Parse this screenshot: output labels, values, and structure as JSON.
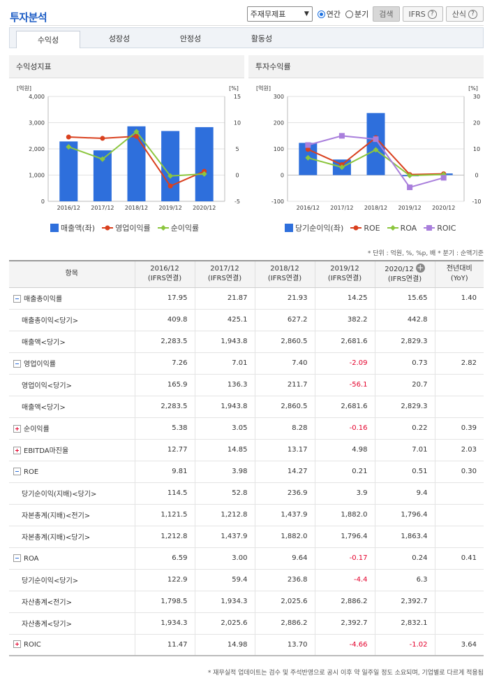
{
  "title": "투자분석",
  "controls": {
    "select_value": "주재무제표",
    "radio_annual": "연간",
    "radio_quarter": "분기",
    "search_btn": "검색",
    "ifrs_btn": "IFRS",
    "formula_btn": "산식"
  },
  "tabs": [
    {
      "label": "수익성"
    },
    {
      "label": "성장성"
    },
    {
      "label": "안정성"
    },
    {
      "label": "활동성"
    }
  ],
  "left_panel": {
    "title": "수익성지표"
  },
  "right_panel": {
    "title": "투자수익률"
  },
  "chart_data": [
    {
      "type": "bar",
      "title": "수익성지표",
      "categories": [
        "2016/12",
        "2017/12",
        "2018/12",
        "2019/12",
        "2020/12"
      ],
      "y_left_unit": "[억원]",
      "y_right_unit": "[%]",
      "y_left_ticks": [
        "4,000",
        "3,000",
        "2,000",
        "1,000",
        "0"
      ],
      "y_right_ticks": [
        "15",
        "10",
        "5",
        "0",
        "-5"
      ],
      "ylim_left": [
        0,
        4000
      ],
      "ylim_right": [
        -5,
        15
      ],
      "series": [
        {
          "name": "매출액(좌)",
          "kind": "bar",
          "axis": "left",
          "color": "#2e6fdc",
          "values": [
            2283.5,
            1943.8,
            2860.5,
            2681.6,
            2829.3
          ]
        },
        {
          "name": "영업이익률",
          "kind": "line",
          "axis": "right",
          "color": "#d9401e",
          "values": [
            7.26,
            7.01,
            7.4,
            -2.09,
            0.73
          ]
        },
        {
          "name": "순이익률",
          "kind": "line",
          "axis": "right",
          "color": "#8cc63e",
          "values": [
            5.38,
            3.05,
            8.28,
            -0.16,
            0.22
          ]
        }
      ]
    },
    {
      "type": "bar",
      "title": "투자수익률",
      "categories": [
        "2016/12",
        "2017/12",
        "2018/12",
        "2019/12",
        "2020/12"
      ],
      "y_left_unit": "[억원]",
      "y_right_unit": "[%]",
      "y_left_ticks": [
        "300",
        "200",
        "100",
        "0",
        "-100"
      ],
      "y_right_ticks": [
        "30",
        "20",
        "10",
        "0",
        "-10"
      ],
      "ylim_left": [
        -100,
        300
      ],
      "ylim_right": [
        -10,
        30
      ],
      "series": [
        {
          "name": "당기순이익(좌)",
          "kind": "bar",
          "axis": "left",
          "color": "#2e6fdc",
          "values": [
            122.9,
            59.4,
            236.8,
            -4.4,
            6.3
          ]
        },
        {
          "name": "ROE",
          "kind": "line",
          "axis": "right",
          "color": "#d9401e",
          "values": [
            9.81,
            3.98,
            14.27,
            0.21,
            0.51
          ]
        },
        {
          "name": "ROA",
          "kind": "line",
          "axis": "right",
          "color": "#8cc63e",
          "values": [
            6.59,
            3.0,
            9.64,
            -0.17,
            0.24
          ]
        },
        {
          "name": "ROIC",
          "kind": "line",
          "axis": "right",
          "color": "#a97fdc",
          "values": [
            11.47,
            14.98,
            13.7,
            -4.66,
            -1.02
          ]
        }
      ]
    }
  ],
  "unit_note": "* 단위 : 억원, %, %p, 배   * 분기 : 순액기준",
  "table": {
    "headers": [
      {
        "l1": "항목",
        "l2": ""
      },
      {
        "l1": "2016/12",
        "l2": "(IFRS연결)"
      },
      {
        "l1": "2017/12",
        "l2": "(IFRS연결)"
      },
      {
        "l1": "2018/12",
        "l2": "(IFRS연결)"
      },
      {
        "l1": "2019/12",
        "l2": "(IFRS연결)"
      },
      {
        "l1": "2020/12",
        "l2": "(IFRS연결)"
      },
      {
        "l1": "전년대비",
        "l2": "(YoY)"
      }
    ],
    "rows": [
      {
        "label": "매출총이익률",
        "kind": "main",
        "toggle": "minus",
        "values": [
          "17.95",
          "21.87",
          "21.93",
          "14.25",
          "15.65",
          "1.40"
        ]
      },
      {
        "label": "매출총이익<당기>",
        "kind": "sub",
        "values": [
          "409.8",
          "425.1",
          "627.2",
          "382.2",
          "442.8",
          ""
        ]
      },
      {
        "label": "매출액<당기>",
        "kind": "sub",
        "values": [
          "2,283.5",
          "1,943.8",
          "2,860.5",
          "2,681.6",
          "2,829.3",
          ""
        ]
      },
      {
        "label": "영업이익률",
        "kind": "main",
        "toggle": "minus",
        "values": [
          "7.26",
          "7.01",
          "7.40",
          "-2.09",
          "0.73",
          "2.82"
        ]
      },
      {
        "label": "영업이익<당기>",
        "kind": "sub",
        "values": [
          "165.9",
          "136.3",
          "211.7",
          "-56.1",
          "20.7",
          ""
        ]
      },
      {
        "label": "매출액<당기>",
        "kind": "sub",
        "values": [
          "2,283.5",
          "1,943.8",
          "2,860.5",
          "2,681.6",
          "2,829.3",
          ""
        ]
      },
      {
        "label": "순이익률",
        "kind": "main",
        "toggle": "plus",
        "values": [
          "5.38",
          "3.05",
          "8.28",
          "-0.16",
          "0.22",
          "0.39"
        ]
      },
      {
        "label": "EBITDA마진율",
        "kind": "main",
        "toggle": "plus",
        "values": [
          "12.77",
          "14.85",
          "13.17",
          "4.98",
          "7.01",
          "2.03"
        ]
      },
      {
        "label": "ROE",
        "kind": "main",
        "toggle": "minus",
        "values": [
          "9.81",
          "3.98",
          "14.27",
          "0.21",
          "0.51",
          "0.30"
        ]
      },
      {
        "label": "당기순이익(지배)<당기>",
        "kind": "sub",
        "values": [
          "114.5",
          "52.8",
          "236.9",
          "3.9",
          "9.4",
          ""
        ]
      },
      {
        "label": "자본총계(지배)<전기>",
        "kind": "sub",
        "values": [
          "1,121.5",
          "1,212.8",
          "1,437.9",
          "1,882.0",
          "1,796.4",
          ""
        ]
      },
      {
        "label": "자본총계(지배)<당기>",
        "kind": "sub",
        "values": [
          "1,212.8",
          "1,437.9",
          "1,882.0",
          "1,796.4",
          "1,863.4",
          ""
        ]
      },
      {
        "label": "ROA",
        "kind": "main",
        "toggle": "minus",
        "values": [
          "6.59",
          "3.00",
          "9.64",
          "-0.17",
          "0.24",
          "0.41"
        ]
      },
      {
        "label": "당기순이익<당기>",
        "kind": "sub",
        "values": [
          "122.9",
          "59.4",
          "236.8",
          "-4.4",
          "6.3",
          ""
        ]
      },
      {
        "label": "자산총계<전기>",
        "kind": "sub",
        "values": [
          "1,798.5",
          "1,934.3",
          "2,025.6",
          "2,886.2",
          "2,392.7",
          ""
        ]
      },
      {
        "label": "자산총계<당기>",
        "kind": "sub",
        "values": [
          "1,934.3",
          "2,025.6",
          "2,886.2",
          "2,392.7",
          "2,832.1",
          ""
        ]
      },
      {
        "label": "ROIC",
        "kind": "main",
        "toggle": "plus",
        "values": [
          "11.47",
          "14.98",
          "13.70",
          "-4.66",
          "-1.02",
          "3.64"
        ]
      }
    ]
  },
  "footnote": "* 재무실적 업데이트는 검수 및 주석반영으로 공시 이후 약 일주일 정도 소요되며, 기업별로 다르게 적용됨"
}
